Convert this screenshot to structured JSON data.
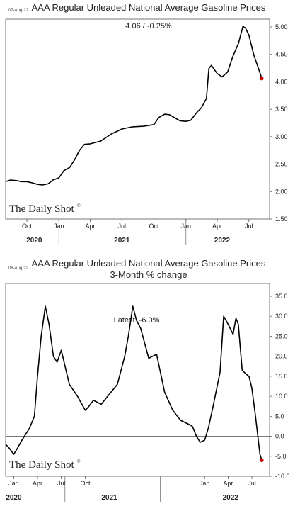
{
  "chart_data": [
    {
      "type": "line",
      "date_stamp": "07-Aug-22",
      "title": "AAA Regular Unleaded National Average Gasoline Prices",
      "subtitle": "",
      "annotation": "4.06  /  -0.25%",
      "brand": "The Daily Shot",
      "brand_mark": "®",
      "x_tick_labels": [
        "Oct",
        "Jan",
        "Apr",
        "Jul",
        "Oct",
        "Jan",
        "Apr",
        "Jul"
      ],
      "x_period_labels": [
        "2020",
        "2021",
        "2022"
      ],
      "ylim": [
        1.5,
        5.0
      ],
      "y_ticks": [
        "1.50",
        "2.00",
        "2.50",
        "3.00",
        "3.50",
        "4.00",
        "4.50",
        "5.00"
      ],
      "grid": false,
      "line_color": "#000000",
      "marker_color": "#cc0000",
      "x": [
        "2020-08-01",
        "2020-08-15",
        "2020-09-01",
        "2020-09-15",
        "2020-10-01",
        "2020-10-15",
        "2020-11-01",
        "2020-11-15",
        "2020-12-01",
        "2020-12-15",
        "2021-01-01",
        "2021-01-15",
        "2021-02-01",
        "2021-02-15",
        "2021-03-01",
        "2021-03-15",
        "2021-04-01",
        "2021-05-01",
        "2021-06-01",
        "2021-07-01",
        "2021-08-01",
        "2021-09-01",
        "2021-10-01",
        "2021-10-15",
        "2021-11-01",
        "2021-11-15",
        "2021-12-01",
        "2021-12-15",
        "2022-01-01",
        "2022-01-15",
        "2022-02-01",
        "2022-02-15",
        "2022-03-01",
        "2022-03-08",
        "2022-03-15",
        "2022-04-01",
        "2022-04-15",
        "2022-05-01",
        "2022-05-15",
        "2022-06-01",
        "2022-06-14",
        "2022-06-21",
        "2022-07-01",
        "2022-07-15",
        "2022-08-01",
        "2022-08-07"
      ],
      "values": [
        2.18,
        2.21,
        2.2,
        2.18,
        2.18,
        2.16,
        2.13,
        2.12,
        2.14,
        2.21,
        2.25,
        2.38,
        2.44,
        2.58,
        2.75,
        2.86,
        2.87,
        2.92,
        3.05,
        3.14,
        3.18,
        3.19,
        3.22,
        3.35,
        3.41,
        3.4,
        3.34,
        3.29,
        3.28,
        3.3,
        3.44,
        3.53,
        3.7,
        4.24,
        4.3,
        4.15,
        4.09,
        4.18,
        4.45,
        4.7,
        5.01,
        4.98,
        4.85,
        4.49,
        4.18,
        4.06
      ]
    },
    {
      "type": "line",
      "date_stamp": "08-Aug-22",
      "title": "AAA Regular Unleaded National Average Gasoline Prices",
      "subtitle": "3-Month % change",
      "annotation": "Latest:  -6.0%",
      "brand": "The Daily Shot",
      "brand_mark": "®",
      "x_tick_labels": [
        "Jan",
        "Apr",
        "Jul",
        "Oct",
        "Jan",
        "Apr",
        "Jul"
      ],
      "x_period_labels": [
        "2020",
        "2021",
        "2022"
      ],
      "ylim": [
        -10.0,
        35.0
      ],
      "y_ticks": [
        "-10.0",
        "-5.0",
        "0.0",
        "5.0",
        "10.0",
        "15.0",
        "20.0",
        "25.0",
        "30.0",
        "35.0"
      ],
      "zero_line": true,
      "grid": false,
      "line_color": "#000000",
      "marker_color": "#cc0000",
      "x": [
        "2019-12-01",
        "2019-12-15",
        "2020-01-01",
        "2020-01-15",
        "2020-02-01",
        "2020-03-01",
        "2020-03-20",
        "2020-04-01",
        "2020-04-15",
        "2020-05-01",
        "2020-05-15",
        "2020-06-01",
        "2020-06-15",
        "2020-07-01",
        "2020-08-01",
        "2020-09-01",
        "2020-10-01",
        "2020-10-15",
        "2020-11-01",
        "2020-12-01",
        "2021-01-01",
        "2021-02-01",
        "2021-03-01",
        "2021-03-15",
        "2021-04-01",
        "2021-04-15",
        "2021-05-01",
        "2021-06-01",
        "2021-07-01",
        "2021-08-01",
        "2021-09-01",
        "2021-10-01",
        "2021-11-01",
        "2021-11-15",
        "2021-12-01",
        "2021-12-15",
        "2022-01-01",
        "2022-01-15",
        "2022-02-01",
        "2022-03-01",
        "2022-03-15",
        "2022-04-01",
        "2022-04-20",
        "2022-05-01",
        "2022-05-10",
        "2022-05-25",
        "2022-06-10",
        "2022-06-20",
        "2022-07-01",
        "2022-07-15",
        "2022-08-01",
        "2022-08-08"
      ],
      "values": [
        -2.0,
        -3.0,
        -4.5,
        -3.0,
        -1.0,
        2.0,
        5.0,
        15.0,
        25.0,
        32.5,
        28.0,
        20.0,
        18.5,
        21.5,
        13.0,
        10.0,
        6.5,
        7.5,
        9.0,
        8.0,
        10.5,
        13.0,
        20.0,
        25.0,
        32.5,
        29.0,
        27.0,
        19.5,
        20.5,
        11.0,
        6.5,
        4.0,
        3.0,
        2.5,
        0.0,
        -1.5,
        -1.0,
        2.0,
        7.0,
        16.0,
        30.0,
        28.0,
        25.5,
        29.5,
        28.0,
        16.5,
        15.5,
        15.0,
        12.0,
        5.0,
        -4.5,
        -6.0
      ]
    }
  ]
}
